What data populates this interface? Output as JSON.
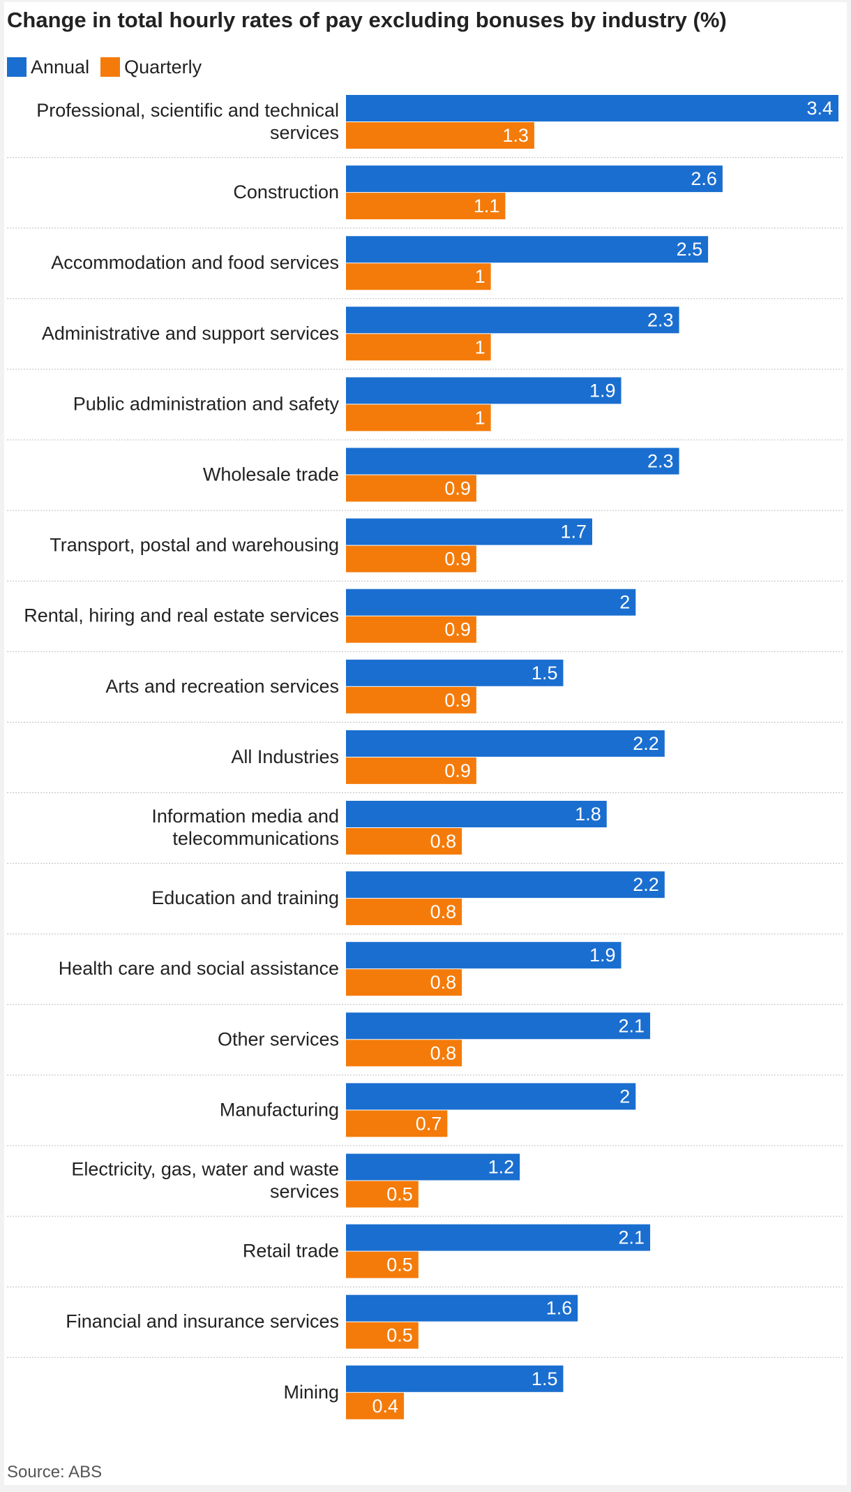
{
  "chart_data": {
    "type": "bar",
    "orientation": "horizontal",
    "title": "Change in total hourly rates of pay excluding bonuses by industry (%)",
    "source": "Source: ABS",
    "categories": [
      "Professional, scientific and technical services",
      "Construction",
      "Accommodation and food services",
      "Administrative and support services",
      "Public administration and safety",
      "Wholesale trade",
      "Transport, postal and warehousing",
      "Rental, hiring and real estate services",
      "Arts and recreation services",
      "All Industries",
      "Information media and telecommunications",
      "Education and training",
      "Health care and social assistance",
      "Other services",
      "Manufacturing",
      "Electricity, gas, water and waste services",
      "Retail trade",
      "Financial and insurance services",
      "Mining"
    ],
    "series": [
      {
        "name": "Annual",
        "color": "#1a6ecf",
        "values": [
          3.4,
          2.6,
          2.5,
          2.3,
          1.9,
          2.3,
          1.7,
          2,
          1.5,
          2.2,
          1.8,
          2.2,
          1.9,
          2.1,
          2,
          1.2,
          2.1,
          1.6,
          1.5
        ]
      },
      {
        "name": "Quarterly",
        "color": "#f47b0a",
        "values": [
          1.3,
          1.1,
          1,
          1,
          1,
          0.9,
          0.9,
          0.9,
          0.9,
          0.9,
          0.8,
          0.8,
          0.8,
          0.8,
          0.7,
          0.5,
          0.5,
          0.5,
          0.4
        ]
      }
    ],
    "xlim": [
      0,
      3.4
    ],
    "legend": "top-left",
    "grid": false
  }
}
